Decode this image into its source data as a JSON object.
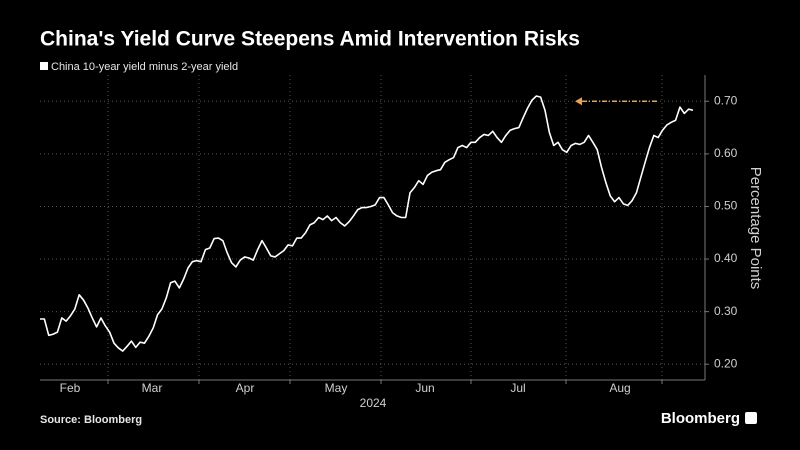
{
  "chart_data": {
    "type": "line",
    "title": "China's Yield Curve Steepens Amid Intervention Risks",
    "y_axis_label": "Percentage Points",
    "x_axis_label": "2024",
    "source": "Source: Bloomberg",
    "brand": "Bloomberg",
    "months": [
      "Feb",
      "Mar",
      "Apr",
      "May",
      "Jun",
      "Jul",
      "Aug"
    ],
    "ylim": [
      0.17,
      0.75
    ],
    "yticks": [
      {
        "value": 0.2,
        "label": "0.20"
      },
      {
        "value": 0.3,
        "label": "0.30"
      },
      {
        "value": 0.4,
        "label": "0.40"
      },
      {
        "value": 0.5,
        "label": "0.50"
      },
      {
        "value": 0.6,
        "label": "0.60"
      },
      {
        "value": 0.7,
        "label": "0.70"
      }
    ],
    "grid": true,
    "annotation_arrow": {
      "y": 0.7,
      "color": "#f0a04b"
    },
    "series": [
      {
        "name": "China 10-year yield minus 2-year yield",
        "color": "#ffffff",
        "values": [
          0.286,
          0.286,
          0.255,
          0.257,
          0.261,
          0.288,
          0.282,
          0.292,
          0.305,
          0.332,
          0.322,
          0.307,
          0.288,
          0.271,
          0.288,
          0.273,
          0.261,
          0.24,
          0.231,
          0.225,
          0.234,
          0.244,
          0.232,
          0.242,
          0.24,
          0.253,
          0.269,
          0.294,
          0.305,
          0.326,
          0.355,
          0.358,
          0.345,
          0.362,
          0.383,
          0.395,
          0.397,
          0.395,
          0.418,
          0.421,
          0.439,
          0.44,
          0.435,
          0.412,
          0.393,
          0.385,
          0.398,
          0.404,
          0.402,
          0.398,
          0.418,
          0.435,
          0.421,
          0.406,
          0.404,
          0.41,
          0.416,
          0.427,
          0.425,
          0.44,
          0.44,
          0.45,
          0.465,
          0.469,
          0.479,
          0.475,
          0.482,
          0.473,
          0.479,
          0.469,
          0.463,
          0.471,
          0.482,
          0.494,
          0.498,
          0.498,
          0.5,
          0.503,
          0.517,
          0.517,
          0.503,
          0.488,
          0.482,
          0.479,
          0.479,
          0.526,
          0.536,
          0.549,
          0.542,
          0.559,
          0.565,
          0.568,
          0.57,
          0.584,
          0.589,
          0.593,
          0.612,
          0.616,
          0.612,
          0.622,
          0.622,
          0.631,
          0.637,
          0.635,
          0.643,
          0.631,
          0.622,
          0.635,
          0.645,
          0.648,
          0.65,
          0.669,
          0.687,
          0.702,
          0.71,
          0.708,
          0.683,
          0.641,
          0.616,
          0.622,
          0.608,
          0.603,
          0.616,
          0.62,
          0.618,
          0.622,
          0.635,
          0.622,
          0.608,
          0.574,
          0.545,
          0.52,
          0.509,
          0.517,
          0.505,
          0.502,
          0.511,
          0.526,
          0.555,
          0.584,
          0.612,
          0.635,
          0.631,
          0.645,
          0.655,
          0.66,
          0.664,
          0.689,
          0.677,
          0.685,
          0.683
        ]
      }
    ]
  }
}
